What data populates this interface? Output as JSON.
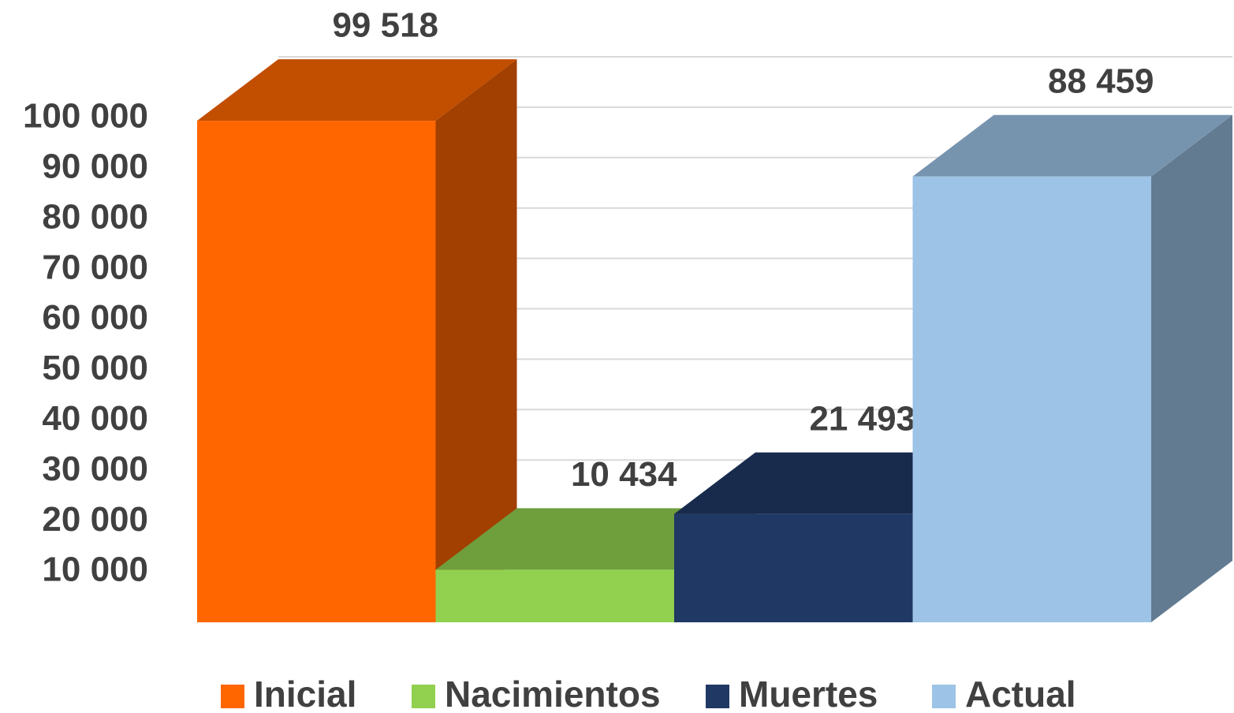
{
  "chart_data": {
    "type": "bar3d",
    "series": [
      {
        "name": "Inicial",
        "color": "#ff6600",
        "values": [
          99518
        ],
        "value_labels": [
          "99 518"
        ]
      },
      {
        "name": "Nacimientos",
        "color": "#92d050",
        "values": [
          10434
        ],
        "value_labels": [
          "10 434"
        ]
      },
      {
        "name": "Muertes",
        "color": "#203864",
        "values": [
          21493
        ],
        "value_labels": [
          "21 493"
        ]
      },
      {
        "name": "Actual",
        "color": "#9dc3e6",
        "values": [
          88459
        ],
        "value_labels": [
          "88 459"
        ]
      }
    ],
    "ylim": [
      0,
      100000
    ],
    "yticks": [
      {
        "value": 10000,
        "label": "10 000"
      },
      {
        "value": 20000,
        "label": "20 000"
      },
      {
        "value": 30000,
        "label": "30 000"
      },
      {
        "value": 40000,
        "label": "40 000"
      },
      {
        "value": 50000,
        "label": "50 000"
      },
      {
        "value": 60000,
        "label": "60 000"
      },
      {
        "value": 70000,
        "label": "70 000"
      },
      {
        "value": 80000,
        "label": "80 000"
      },
      {
        "value": 90000,
        "label": "90 000"
      },
      {
        "value": 100000,
        "label": "100 000"
      }
    ],
    "grid": true,
    "legend": "bottom"
  }
}
